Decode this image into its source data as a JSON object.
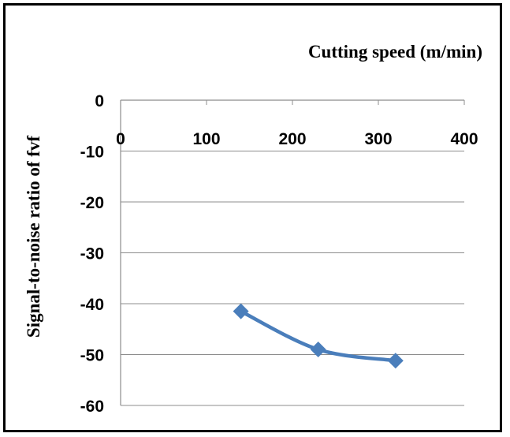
{
  "chart_data": {
    "type": "line",
    "title": "",
    "xlabel": "Cutting speed (m/min)",
    "ylabel": "Signal-to-noise ratio of fvf",
    "xlim": [
      0,
      400
    ],
    "ylim": [
      -60,
      0
    ],
    "x_ticks": [
      "0",
      "100",
      "200",
      "300",
      "400"
    ],
    "y_ticks": [
      "0",
      "-10",
      "-20",
      "-30",
      "-40",
      "-50",
      "-60"
    ],
    "grid": "horizontal",
    "x_axis_position": "top",
    "marker": "diamond",
    "series_color": "#4A7EBB",
    "series": [
      {
        "x": [
          140,
          230,
          320
        ],
        "y": [
          -41.5,
          -49.0,
          -51.2
        ]
      }
    ]
  }
}
